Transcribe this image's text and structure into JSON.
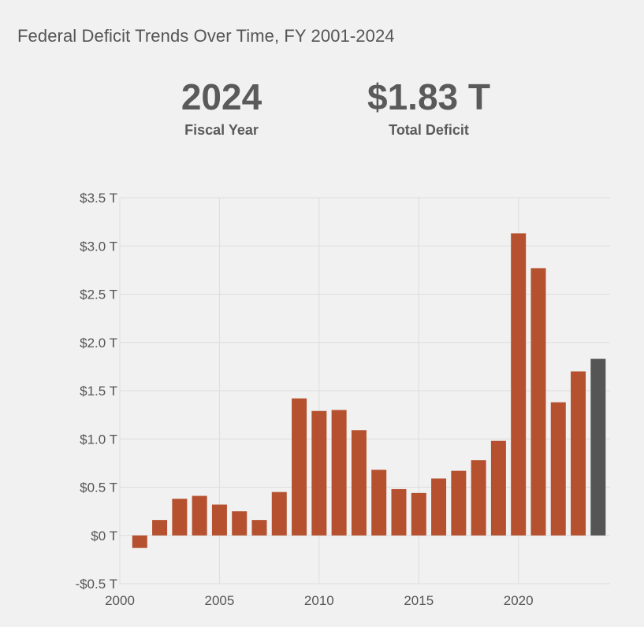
{
  "title": "Federal Deficit Trends Over Time, FY 2001-2024",
  "highlight": {
    "year": "2024",
    "year_label": "Fiscal Year",
    "value": "$1.83 T",
    "value_label": "Total Deficit"
  },
  "colors": {
    "bar": "#b5512f",
    "bar_highlight": "#555555",
    "grid": "#dddddd",
    "text": "#555555"
  },
  "chart_data": {
    "type": "bar",
    "title": "Federal Deficit Trends Over Time, FY 2001-2024",
    "xlabel": "",
    "ylabel": "",
    "x": [
      2001,
      2002,
      2003,
      2004,
      2005,
      2006,
      2007,
      2008,
      2009,
      2010,
      2011,
      2012,
      2013,
      2014,
      2015,
      2016,
      2017,
      2018,
      2019,
      2020,
      2021,
      2022,
      2023,
      2024
    ],
    "values": [
      -0.13,
      0.16,
      0.38,
      0.41,
      0.32,
      0.25,
      0.16,
      0.45,
      1.42,
      1.29,
      1.3,
      1.09,
      0.68,
      0.48,
      0.44,
      0.59,
      0.67,
      0.78,
      0.98,
      3.13,
      2.77,
      1.38,
      1.7,
      1.83
    ],
    "highlight_x": 2024,
    "ylim": [
      -0.5,
      3.5
    ],
    "xlim": [
      2000,
      2024.6
    ],
    "yticks": [
      -0.5,
      0,
      0.5,
      1.0,
      1.5,
      2.0,
      2.5,
      3.0,
      3.5
    ],
    "ytick_labels": [
      "-$0.5 T",
      "$0 T",
      "$0.5 T",
      "$1.0 T",
      "$1.5 T",
      "$2.0 T",
      "$2.5 T",
      "$3.0 T",
      "$3.5 T"
    ],
    "xticks": [
      2000,
      2005,
      2010,
      2015,
      2020
    ],
    "xtick_labels": [
      "2000",
      "2005",
      "2010",
      "2015",
      "2020"
    ],
    "grid": true,
    "legend": "none"
  }
}
